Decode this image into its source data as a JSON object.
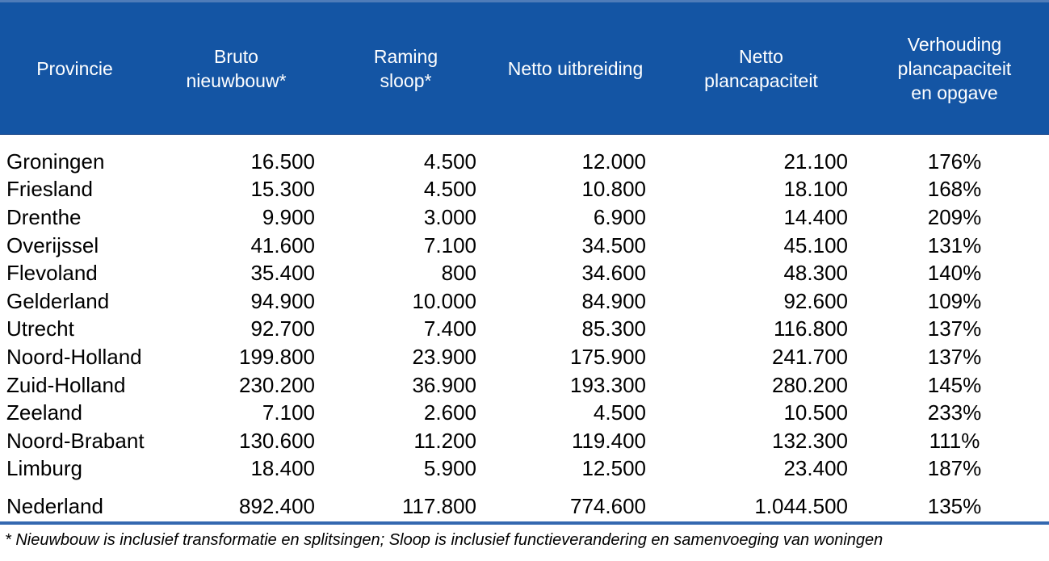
{
  "table": {
    "header": {
      "provincie": "Provincie",
      "bruto_nieuwbouw": "Bruto\nnieuwbouw*",
      "raming_sloop": "Raming\nsloop*",
      "netto_uitbreiding": "Netto uitbreiding",
      "netto_plancapaciteit": "Netto\nplancapaciteit",
      "verhouding": "Verhouding\nplancapaciteit\nen opgave"
    },
    "rows": [
      {
        "province": "Groningen",
        "bruto_nieuwbouw": "16.500",
        "raming_sloop": "4.500",
        "netto_uitbreiding": "12.000",
        "netto_plancapaciteit": "21.100",
        "verhouding": "176%"
      },
      {
        "province": "Friesland",
        "bruto_nieuwbouw": "15.300",
        "raming_sloop": "4.500",
        "netto_uitbreiding": "10.800",
        "netto_plancapaciteit": "18.100",
        "verhouding": "168%"
      },
      {
        "province": "Drenthe",
        "bruto_nieuwbouw": "9.900",
        "raming_sloop": "3.000",
        "netto_uitbreiding": "6.900",
        "netto_plancapaciteit": "14.400",
        "verhouding": "209%"
      },
      {
        "province": "Overijssel",
        "bruto_nieuwbouw": "41.600",
        "raming_sloop": "7.100",
        "netto_uitbreiding": "34.500",
        "netto_plancapaciteit": "45.100",
        "verhouding": "131%"
      },
      {
        "province": "Flevoland",
        "bruto_nieuwbouw": "35.400",
        "raming_sloop": "800",
        "netto_uitbreiding": "34.600",
        "netto_plancapaciteit": "48.300",
        "verhouding": "140%"
      },
      {
        "province": "Gelderland",
        "bruto_nieuwbouw": "94.900",
        "raming_sloop": "10.000",
        "netto_uitbreiding": "84.900",
        "netto_plancapaciteit": "92.600",
        "verhouding": "109%"
      },
      {
        "province": "Utrecht",
        "bruto_nieuwbouw": "92.700",
        "raming_sloop": "7.400",
        "netto_uitbreiding": "85.300",
        "netto_plancapaciteit": "116.800",
        "verhouding": "137%"
      },
      {
        "province": "Noord-Holland",
        "bruto_nieuwbouw": "199.800",
        "raming_sloop": "23.900",
        "netto_uitbreiding": "175.900",
        "netto_plancapaciteit": "241.700",
        "verhouding": "137%"
      },
      {
        "province": "Zuid-Holland",
        "bruto_nieuwbouw": "230.200",
        "raming_sloop": "36.900",
        "netto_uitbreiding": "193.300",
        "netto_plancapaciteit": "280.200",
        "verhouding": "145%"
      },
      {
        "province": "Zeeland",
        "bruto_nieuwbouw": "7.100",
        "raming_sloop": "2.600",
        "netto_uitbreiding": "4.500",
        "netto_plancapaciteit": "10.500",
        "verhouding": "233%"
      },
      {
        "province": "Noord-Brabant",
        "bruto_nieuwbouw": "130.600",
        "raming_sloop": "11.200",
        "netto_uitbreiding": "119.400",
        "netto_plancapaciteit": "132.300",
        "verhouding": "111%"
      },
      {
        "province": "Limburg",
        "bruto_nieuwbouw": "18.400",
        "raming_sloop": "5.900",
        "netto_uitbreiding": "12.500",
        "netto_plancapaciteit": "23.400",
        "verhouding": "187%"
      }
    ],
    "total": {
      "province": "Nederland",
      "bruto_nieuwbouw": "892.400",
      "raming_sloop": "117.800",
      "netto_uitbreiding": "774.600",
      "netto_plancapaciteit": "1.044.500",
      "verhouding": "135%"
    },
    "footnote": "* Nieuwbouw is inclusief transformatie en splitsingen; Sloop is inclusief functieverandering en samenvoeging van woningen"
  },
  "colors": {
    "header_bg": "#1455A4",
    "header_text": "#FFFFFF",
    "header_top_edge": "#4F7CB9",
    "body_text": "#000000",
    "rule_core": "#16418D",
    "rule_edge": "#3468B0",
    "page_bg": "#FFFFFF"
  }
}
